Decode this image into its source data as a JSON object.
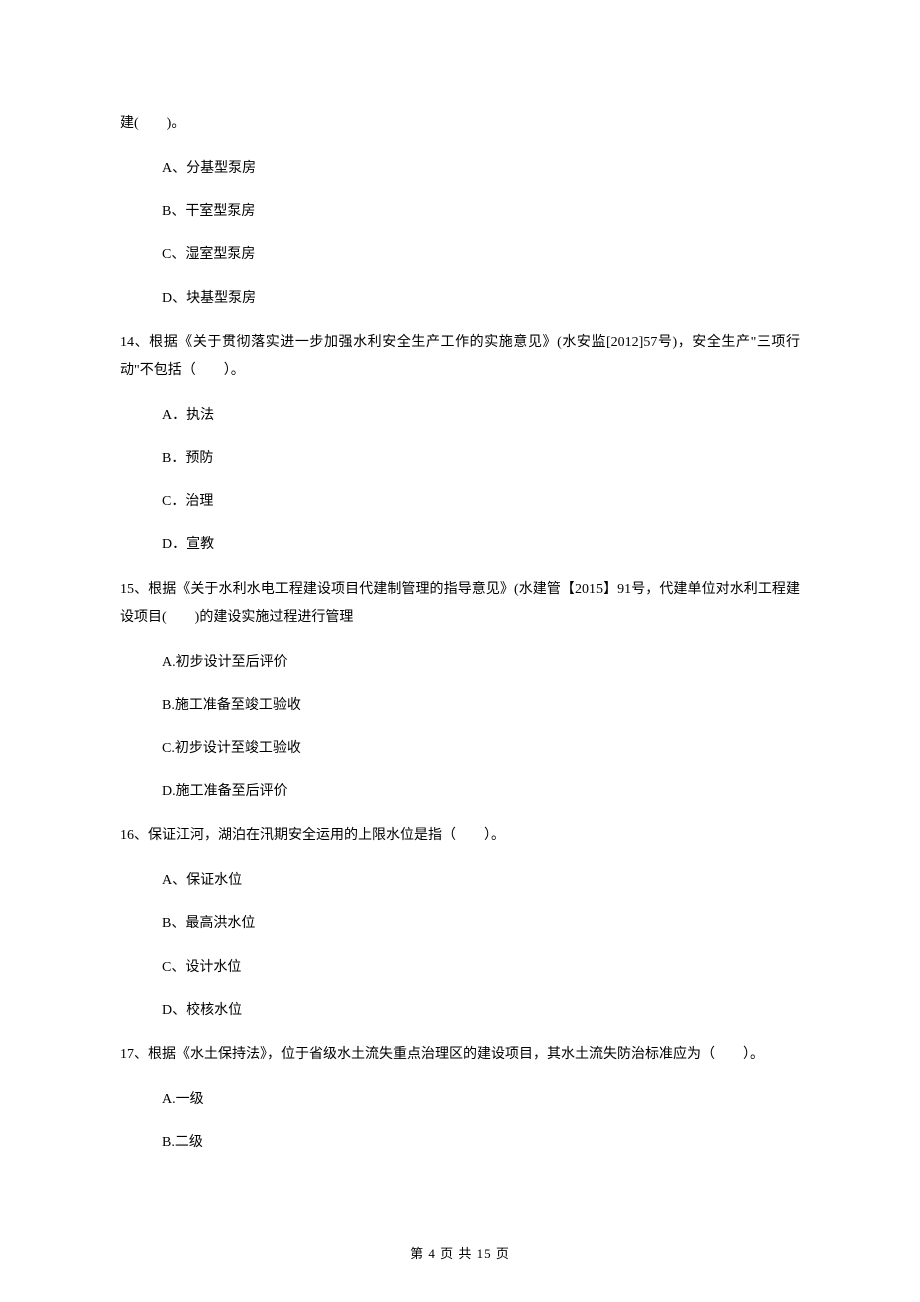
{
  "page": {
    "background_color": "#ffffff",
    "text_color": "#000000",
    "font_family": "SimSun",
    "body_fontsize": 14,
    "footer_fontsize": 13
  },
  "q13_continuation": "建(　　)。",
  "q13_options": {
    "a": "A、分基型泵房",
    "b": "B、干室型泵房",
    "c": "C、湿室型泵房",
    "d": "D、块基型泵房"
  },
  "q14": {
    "text": "14、根据《关于贯彻落实进一步加强水利安全生产工作的实施意见》(水安监[2012]57号)，安全生产\"三项行动\"不包括（　　）。",
    "options": {
      "a": "A．执法",
      "b": "B．预防",
      "c": "C．治理",
      "d": "D．宣教"
    }
  },
  "q15": {
    "text": "15、根据《关于水利水电工程建设项目代建制管理的指导意见》(水建管【2015】91号，代建单位对水利工程建设项目(　　)的建设实施过程进行管理",
    "options": {
      "a": "A.初步设计至后评价",
      "b": "B.施工准备至竣工验收",
      "c": "C.初步设计至竣工验收",
      "d": "D.施工准备至后评价"
    }
  },
  "q16": {
    "text": "16、保证江河，湖泊在汛期安全运用的上限水位是指（　　）。",
    "options": {
      "a": "A、保证水位",
      "b": "B、最高洪水位",
      "c": "C、设计水位",
      "d": "D、校核水位"
    }
  },
  "q17": {
    "text": "17、根据《水土保持法》，位于省级水土流失重点治理区的建设项目，其水土流失防治标准应为（　　）。",
    "options": {
      "a": "A.一级",
      "b": "B.二级"
    }
  },
  "footer": "第 4 页 共 15 页"
}
